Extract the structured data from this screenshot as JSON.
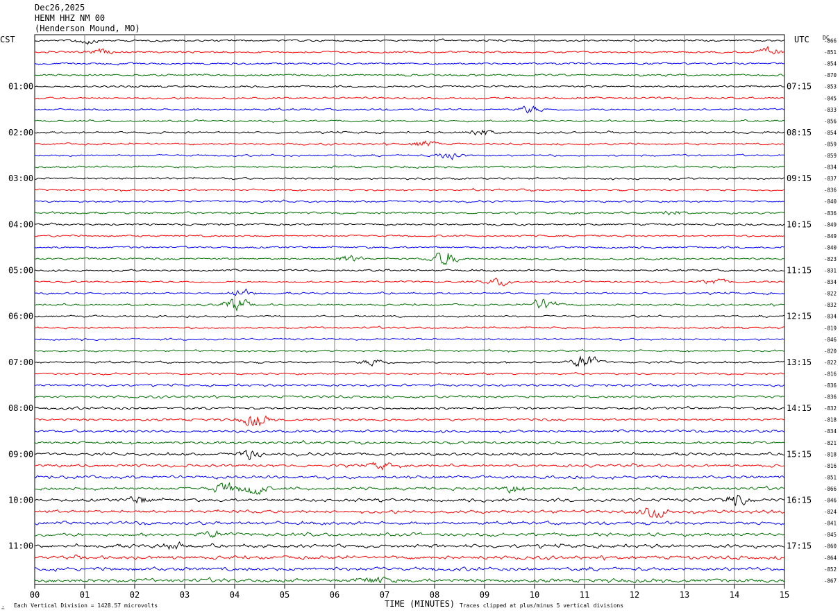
{
  "header": {
    "date": "Dec26,2025",
    "station": "HENM HHZ NM 00",
    "location": "(Henderson Mound, MO)"
  },
  "axes": {
    "left_zone": "CST",
    "right_zone": "UTC",
    "dc_label": "DC",
    "xlabel": "TIME (MINUTES)",
    "footer_left": "Each Vertical Division = 1428.57 microvolts",
    "footer_right": "Traces clipped at plus/minus 5 vertical divisions",
    "footer_glyph": "∴"
  },
  "colors": {
    "trace_cycle": [
      "#000000",
      "#ff0000",
      "#0000ff",
      "#007000"
    ],
    "grid": "#7f7f7f"
  },
  "chart_data": {
    "type": "helicorder",
    "x_ticks": [
      "00",
      "01",
      "02",
      "03",
      "04",
      "05",
      "06",
      "07",
      "08",
      "09",
      "10",
      "11",
      "12",
      "13",
      "14",
      "15"
    ],
    "xlim": [
      0,
      15
    ],
    "trace_count": 48,
    "minutes_per_trace": 15,
    "left_hour_labels": [
      "01:00",
      "02:00",
      "03:00",
      "04:00",
      "05:00",
      "06:00",
      "07:00",
      "08:00",
      "09:00",
      "10:00",
      "11:00"
    ],
    "right_hour_labels": [
      "07:15",
      "08:15",
      "09:15",
      "10:15",
      "11:15",
      "12:15",
      "13:15",
      "14:15",
      "15:15",
      "16:15",
      "17:15"
    ],
    "dc_offsets": [
      "-866",
      "-851",
      "-854",
      "-870",
      "-853",
      "-845",
      "-833",
      "-856",
      "-854",
      "-859",
      "-859",
      "-834",
      "-837",
      "-836",
      "-840",
      "-836",
      "-849",
      "-849",
      "-840",
      "-823",
      "-831",
      "-834",
      "-822",
      "-832",
      "-834",
      "-819",
      "-846",
      "-820",
      "-822",
      "-816",
      "-836",
      "-836",
      "-832",
      "-818",
      "-834",
      "-821",
      "-818",
      "-816",
      "-851",
      "-866",
      "-846",
      "-824",
      "-841",
      "-845",
      "-860",
      "-864",
      "-852",
      "-867"
    ],
    "events": [
      {
        "trace": 0,
        "minute": 1.0,
        "amp": 1.6
      },
      {
        "trace": 1,
        "minute": 14.7,
        "amp": 2.0
      },
      {
        "trace": 1,
        "minute": 1.3,
        "amp": 1.4
      },
      {
        "trace": 6,
        "minute": 9.9,
        "amp": 1.8
      },
      {
        "trace": 8,
        "minute": 8.9,
        "amp": 2.0
      },
      {
        "trace": 9,
        "minute": 7.8,
        "amp": 1.6
      },
      {
        "trace": 10,
        "minute": 8.3,
        "amp": 2.2
      },
      {
        "trace": 15,
        "minute": 12.7,
        "amp": 1.5
      },
      {
        "trace": 19,
        "minute": 8.2,
        "amp": 5.0
      },
      {
        "trace": 19,
        "minute": 6.3,
        "amp": 1.8
      },
      {
        "trace": 21,
        "minute": 9.3,
        "amp": 2.0
      },
      {
        "trace": 21,
        "minute": 13.6,
        "amp": 1.5
      },
      {
        "trace": 22,
        "minute": 4.1,
        "amp": 2.2
      },
      {
        "trace": 23,
        "minute": 4.0,
        "amp": 4.2
      },
      {
        "trace": 23,
        "minute": 10.2,
        "amp": 3.6
      },
      {
        "trace": 28,
        "minute": 11.0,
        "amp": 4.5
      },
      {
        "trace": 28,
        "minute": 6.8,
        "amp": 1.8
      },
      {
        "trace": 33,
        "minute": 4.4,
        "amp": 4.0
      },
      {
        "trace": 36,
        "minute": 4.3,
        "amp": 2.5
      },
      {
        "trace": 37,
        "minute": 6.9,
        "amp": 1.6
      },
      {
        "trace": 39,
        "minute": 3.8,
        "amp": 3.2
      },
      {
        "trace": 39,
        "minute": 4.4,
        "amp": 3.4
      },
      {
        "trace": 39,
        "minute": 9.6,
        "amp": 2.2
      },
      {
        "trace": 40,
        "minute": 14.0,
        "amp": 3.0
      },
      {
        "trace": 40,
        "minute": 2.1,
        "amp": 1.8
      },
      {
        "trace": 41,
        "minute": 12.4,
        "amp": 4.5
      },
      {
        "trace": 43,
        "minute": 3.6,
        "amp": 1.6
      },
      {
        "trace": 44,
        "minute": 2.8,
        "amp": 1.6
      },
      {
        "trace": 47,
        "minute": 6.8,
        "amp": 1.8
      }
    ]
  }
}
